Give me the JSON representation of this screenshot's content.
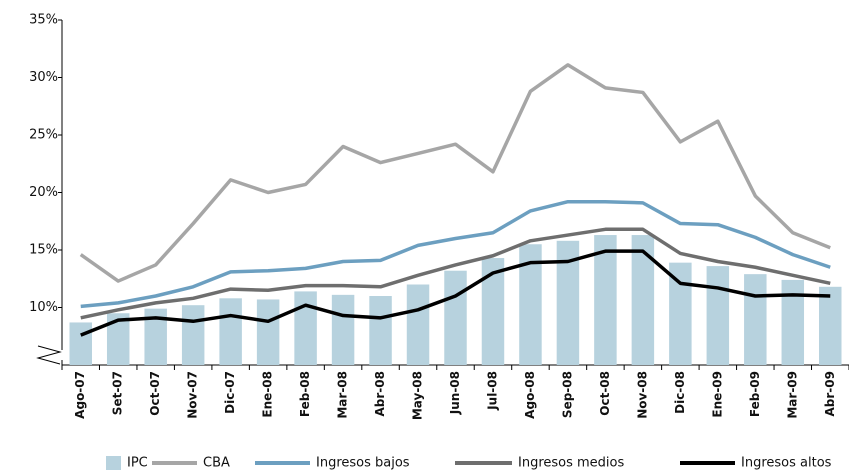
{
  "chart_data": {
    "type": "combo",
    "categories": [
      "Ago-07",
      "Set-07",
      "Oct-07",
      "Nov-07",
      "Dic-07",
      "Ene-08",
      "Feb-08",
      "Mar-08",
      "Abr-08",
      "May-08",
      "Jun-08",
      "Jul-08",
      "Ago-08",
      "Sep-08",
      "Oct-08",
      "Nov-08",
      "Dic-08",
      "Ene-09",
      "Feb-09",
      "Mar-09",
      "Abr-09"
    ],
    "series": [
      {
        "name": "IPC",
        "type": "bar",
        "color": "#b7d2de",
        "values": [
          8.7,
          9.5,
          9.9,
          10.2,
          10.8,
          10.7,
          11.4,
          11.1,
          11.0,
          12.0,
          13.2,
          14.3,
          15.5,
          15.8,
          16.3,
          16.3,
          13.9,
          13.6,
          12.9,
          12.4,
          11.8
        ]
      },
      {
        "name": "CBA",
        "type": "line",
        "color": "#a6a6a6",
        "values": [
          14.6,
          12.3,
          13.7,
          17.3,
          21.1,
          20.0,
          20.7,
          24.0,
          22.6,
          23.4,
          24.2,
          21.8,
          28.8,
          31.1,
          29.1,
          28.7,
          24.4,
          26.2,
          19.7,
          16.5,
          15.2
        ]
      },
      {
        "name": "Ingresos bajos",
        "type": "line",
        "color": "#6c9fc0",
        "values": [
          10.1,
          10.4,
          11.0,
          11.8,
          13.1,
          13.2,
          13.4,
          14.0,
          14.1,
          15.4,
          16.0,
          16.5,
          18.4,
          19.2,
          19.2,
          19.1,
          17.3,
          17.2,
          16.1,
          14.6,
          13.5
        ]
      },
      {
        "name": "Ingresos medios",
        "type": "line",
        "color": "#6e6e6e",
        "values": [
          9.1,
          9.8,
          10.4,
          10.8,
          11.6,
          11.5,
          11.9,
          11.9,
          11.8,
          12.8,
          13.7,
          14.5,
          15.8,
          16.3,
          16.8,
          16.8,
          14.7,
          14.0,
          13.5,
          12.8,
          12.1
        ]
      },
      {
        "name": "Ingresos altos",
        "type": "line",
        "color": "#000000",
        "values": [
          7.6,
          8.9,
          9.1,
          8.8,
          9.3,
          8.8,
          10.2,
          9.3,
          9.1,
          9.8,
          11.0,
          13.0,
          13.9,
          14.0,
          14.9,
          14.9,
          12.1,
          11.7,
          11.0,
          11.1,
          11.0
        ]
      }
    ],
    "ylim": [
      5,
      35
    ],
    "yticks": [
      {
        "value": 10,
        "label": "10%"
      },
      {
        "value": 15,
        "label": "15%"
      },
      {
        "value": 20,
        "label": "20%"
      },
      {
        "value": 25,
        "label": "25%"
      },
      {
        "value": 30,
        "label": "30%"
      },
      {
        "value": 35,
        "label": "35%"
      }
    ],
    "grid": false
  }
}
